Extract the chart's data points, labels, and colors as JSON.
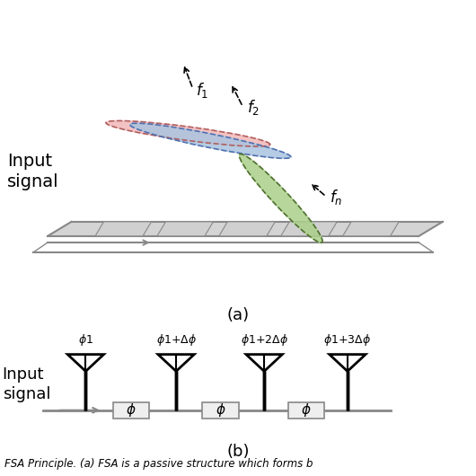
{
  "fig_width": 5.3,
  "fig_height": 5.3,
  "dpi": 100,
  "bg_color": "#ffffff",
  "label_a": "(a)",
  "label_b": "(b)",
  "input_signal_text_a": "Input\nsignal",
  "input_signal_text_b": "Input\nsignal",
  "caption": "FSA Principle. (a) FSA is a passive structure which forms b",
  "pink_color": "#f2b8b8",
  "blue_color": "#aac4e0",
  "green_color": "#aacf8a",
  "gray_line": "#888888",
  "array_fill": "#d4d4d4",
  "patch_fill": "#d0d0d0",
  "box_fill": "#efefef"
}
